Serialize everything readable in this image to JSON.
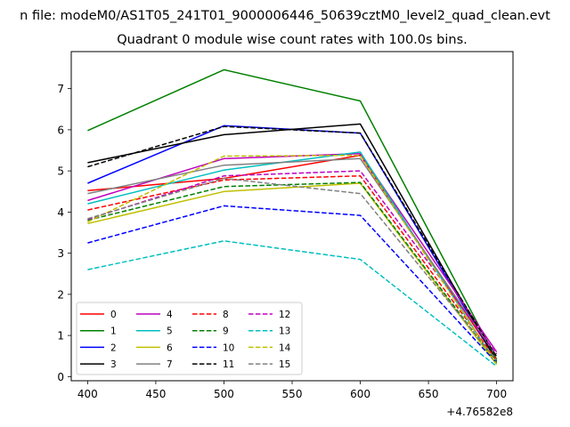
{
  "chart_data": {
    "type": "line",
    "suptitle": "n file: modeM0/AS1T05_241T01_9000006446_50639cztM0_level2_quad_clean.evt",
    "title": "Quadrant 0 module wise count rates with 100.0s bins.",
    "xlabel": "",
    "ylabel": "",
    "x_offset_label": "+4.76582e8",
    "x": [
      400,
      500,
      600,
      700
    ],
    "xlim": [
      388,
      712
    ],
    "ylim": [
      -0.1,
      7.9
    ],
    "xticks": [
      400,
      450,
      500,
      550,
      600,
      650,
      700
    ],
    "yticks": [
      0,
      1,
      2,
      3,
      4,
      5,
      6,
      7
    ],
    "legend_position": "lower-left",
    "legend_columns": 4,
    "series": [
      {
        "name": "0",
        "color": "#ff0000",
        "dash": "solid",
        "values": [
          4.52,
          4.82,
          5.38,
          0.42
        ]
      },
      {
        "name": "1",
        "color": "#008000",
        "dash": "solid",
        "values": [
          5.98,
          7.46,
          6.7,
          0.42
        ]
      },
      {
        "name": "2",
        "color": "#0000ff",
        "dash": "solid",
        "values": [
          4.7,
          6.1,
          5.92,
          0.38
        ]
      },
      {
        "name": "3",
        "color": "#000000",
        "dash": "solid",
        "values": [
          5.2,
          5.88,
          6.14,
          0.38
        ]
      },
      {
        "name": "4",
        "color": "#bf00bf",
        "dash": "solid",
        "values": [
          4.28,
          5.3,
          5.42,
          0.6
        ]
      },
      {
        "name": "5",
        "color": "#00bfbf",
        "dash": "solid",
        "values": [
          4.2,
          5.02,
          5.46,
          0.3
        ]
      },
      {
        "name": "6",
        "color": "#bfbf00",
        "dash": "solid",
        "values": [
          3.72,
          4.5,
          4.7,
          0.3
        ]
      },
      {
        "name": "7",
        "color": "#808080",
        "dash": "solid",
        "values": [
          4.45,
          5.14,
          5.3,
          0.5
        ]
      },
      {
        "name": "8",
        "color": "#ff0000",
        "dash": "dashed",
        "values": [
          4.05,
          4.78,
          4.88,
          0.4
        ]
      },
      {
        "name": "9",
        "color": "#008000",
        "dash": "dashed",
        "values": [
          3.8,
          4.62,
          4.72,
          0.35
        ]
      },
      {
        "name": "10",
        "color": "#0000ff",
        "dash": "dashed",
        "values": [
          3.25,
          4.15,
          3.92,
          0.33
        ]
      },
      {
        "name": "11",
        "color": "#000000",
        "dash": "dashed",
        "values": [
          5.1,
          6.08,
          5.92,
          0.48
        ]
      },
      {
        "name": "12",
        "color": "#bf00bf",
        "dash": "dashed",
        "values": [
          3.82,
          4.88,
          5.0,
          0.55
        ]
      },
      {
        "name": "13",
        "color": "#00bfbf",
        "dash": "dashed",
        "values": [
          2.6,
          3.3,
          2.85,
          0.25
        ]
      },
      {
        "name": "14",
        "color": "#bfbf00",
        "dash": "dashed",
        "values": [
          3.76,
          5.36,
          5.38,
          0.3
        ]
      },
      {
        "name": "15",
        "color": "#808080",
        "dash": "dashed",
        "values": [
          3.84,
          4.82,
          4.45,
          0.4
        ]
      }
    ]
  }
}
